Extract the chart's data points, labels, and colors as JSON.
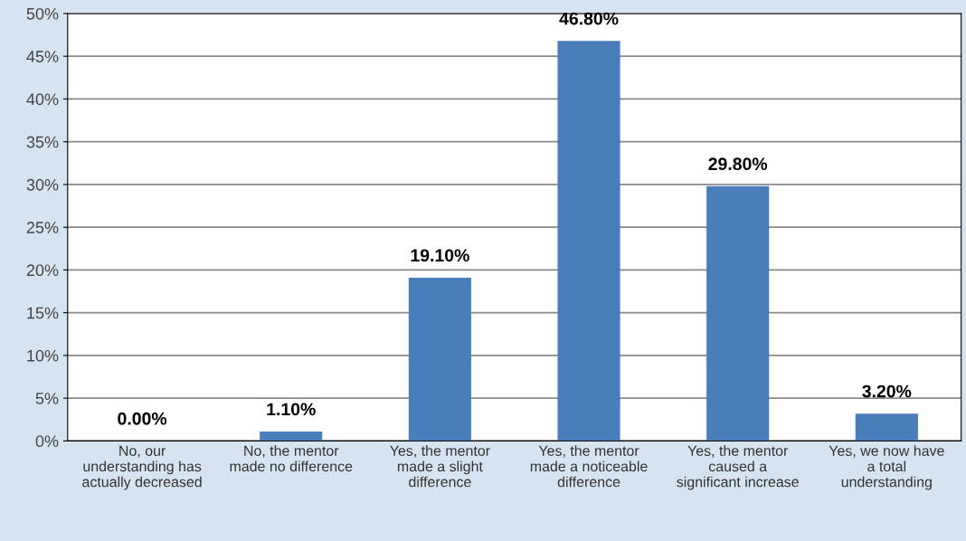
{
  "chart_data": {
    "type": "bar",
    "categories": [
      "No, our\nunderstanding has\nactually decreased",
      "No, the mentor\nmade no difference",
      "Yes, the mentor\nmade a slight\ndifference",
      "Yes, the mentor\nmade a noticeable\ndifference",
      "Yes, the mentor\ncaused a\nsignificant increase",
      "Yes, we now have\na total\nunderstanding"
    ],
    "values": [
      0,
      1.1,
      19.1,
      46.8,
      29.8,
      3.2
    ],
    "value_labels": [
      "0.00%",
      "1.10%",
      "19.10%",
      "46.80%",
      "29.80%",
      "3.20%"
    ],
    "color": "#4a7ebb",
    "ylim": [
      0,
      50
    ],
    "yticks": [
      {
        "value": 0,
        "label": "0%"
      },
      {
        "value": 5,
        "label": "5%"
      },
      {
        "value": 10,
        "label": "10%"
      },
      {
        "value": 15,
        "label": "15%"
      },
      {
        "value": 20,
        "label": "20%"
      },
      {
        "value": 25,
        "label": "25%"
      },
      {
        "value": 30,
        "label": "30%"
      },
      {
        "value": 35,
        "label": "35%"
      },
      {
        "value": 40,
        "label": "40%"
      },
      {
        "value": 45,
        "label": "45%"
      },
      {
        "value": 50,
        "label": "50%"
      }
    ],
    "grid": "y",
    "legend": false
  }
}
